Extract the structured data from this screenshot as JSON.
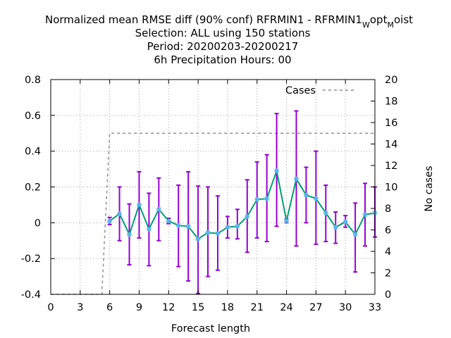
{
  "chart_data": {
    "type": "line",
    "title_lines": [
      {
        "main": "Normalized mean RMSE diff (90% conf) RFRMIN1 - RFRMIN1",
        "sub1": "W",
        "mid": "opt",
        "sub2": "M",
        "tail": "oist"
      },
      {
        "text": "Selection: ALL using   150 stations"
      },
      {
        "text": "Period: 20200203-20200217"
      },
      {
        "text": "6h Precipitation   Hours:  00"
      }
    ],
    "xlabel": "Forecast length",
    "ylabel": "",
    "y2label": "No cases",
    "xlim": [
      0,
      33
    ],
    "ylim": [
      -0.4,
      0.8
    ],
    "y2lim": [
      0,
      20
    ],
    "xticks": [
      "0",
      "3",
      "6",
      "9",
      "12",
      "15",
      "18",
      "21",
      "24",
      "27",
      "30",
      "33"
    ],
    "yticks": [
      "-0.4",
      "-0.2",
      "0",
      "0.2",
      "0.4",
      "0.6",
      "0.8"
    ],
    "y2ticks": [
      "0",
      "2",
      "4",
      "6",
      "8",
      "10",
      "12",
      "14",
      "16",
      "18",
      "20"
    ],
    "grid": true,
    "legend_position": "top-right",
    "series": [
      {
        "name": "",
        "color": "#009e73",
        "marker_color": "#56b4e9",
        "errorbar_color": "#9400d3",
        "x": [
          6,
          7,
          8,
          9,
          10,
          11,
          12,
          13,
          14,
          15,
          16,
          17,
          18,
          19,
          20,
          21,
          22,
          23,
          24,
          25,
          26,
          27,
          28,
          29,
          30,
          31,
          32,
          33
        ],
        "values": [
          0.01,
          0.05,
          -0.065,
          0.1,
          -0.035,
          0.075,
          0.01,
          -0.015,
          -0.02,
          -0.09,
          -0.055,
          -0.06,
          -0.025,
          -0.02,
          0.035,
          0.13,
          0.135,
          0.29,
          0.01,
          0.245,
          0.155,
          0.135,
          0.055,
          -0.025,
          0.005,
          -0.065,
          0.045,
          0.055
        ],
        "lower": [
          -0.01,
          -0.1,
          -0.235,
          -0.085,
          -0.24,
          -0.1,
          -0.005,
          -0.245,
          -0.325,
          -0.395,
          -0.3,
          -0.265,
          -0.085,
          -0.09,
          -0.165,
          -0.085,
          -0.105,
          -0.02,
          0.0,
          -0.13,
          0.0,
          -0.12,
          -0.105,
          -0.115,
          -0.025,
          -0.275,
          -0.13,
          -0.08
        ]
      }
    ],
    "upper": [
      0.03,
      0.2,
      0.105,
      0.285,
      0.165,
      0.25,
      0.025,
      0.21,
      0.285,
      0.205,
      0.2,
      0.15,
      0.035,
      0.075,
      0.24,
      0.34,
      0.38,
      0.61,
      0.02,
      0.625,
      0.31,
      0.4,
      0.21,
      0.06,
      0.04,
      0.11,
      0.22,
      0.2
    ],
    "cases": {
      "name": "Cases",
      "color": "#909090",
      "x": [
        0,
        5.2,
        6,
        33
      ],
      "values": [
        0,
        0,
        15,
        15
      ]
    }
  }
}
